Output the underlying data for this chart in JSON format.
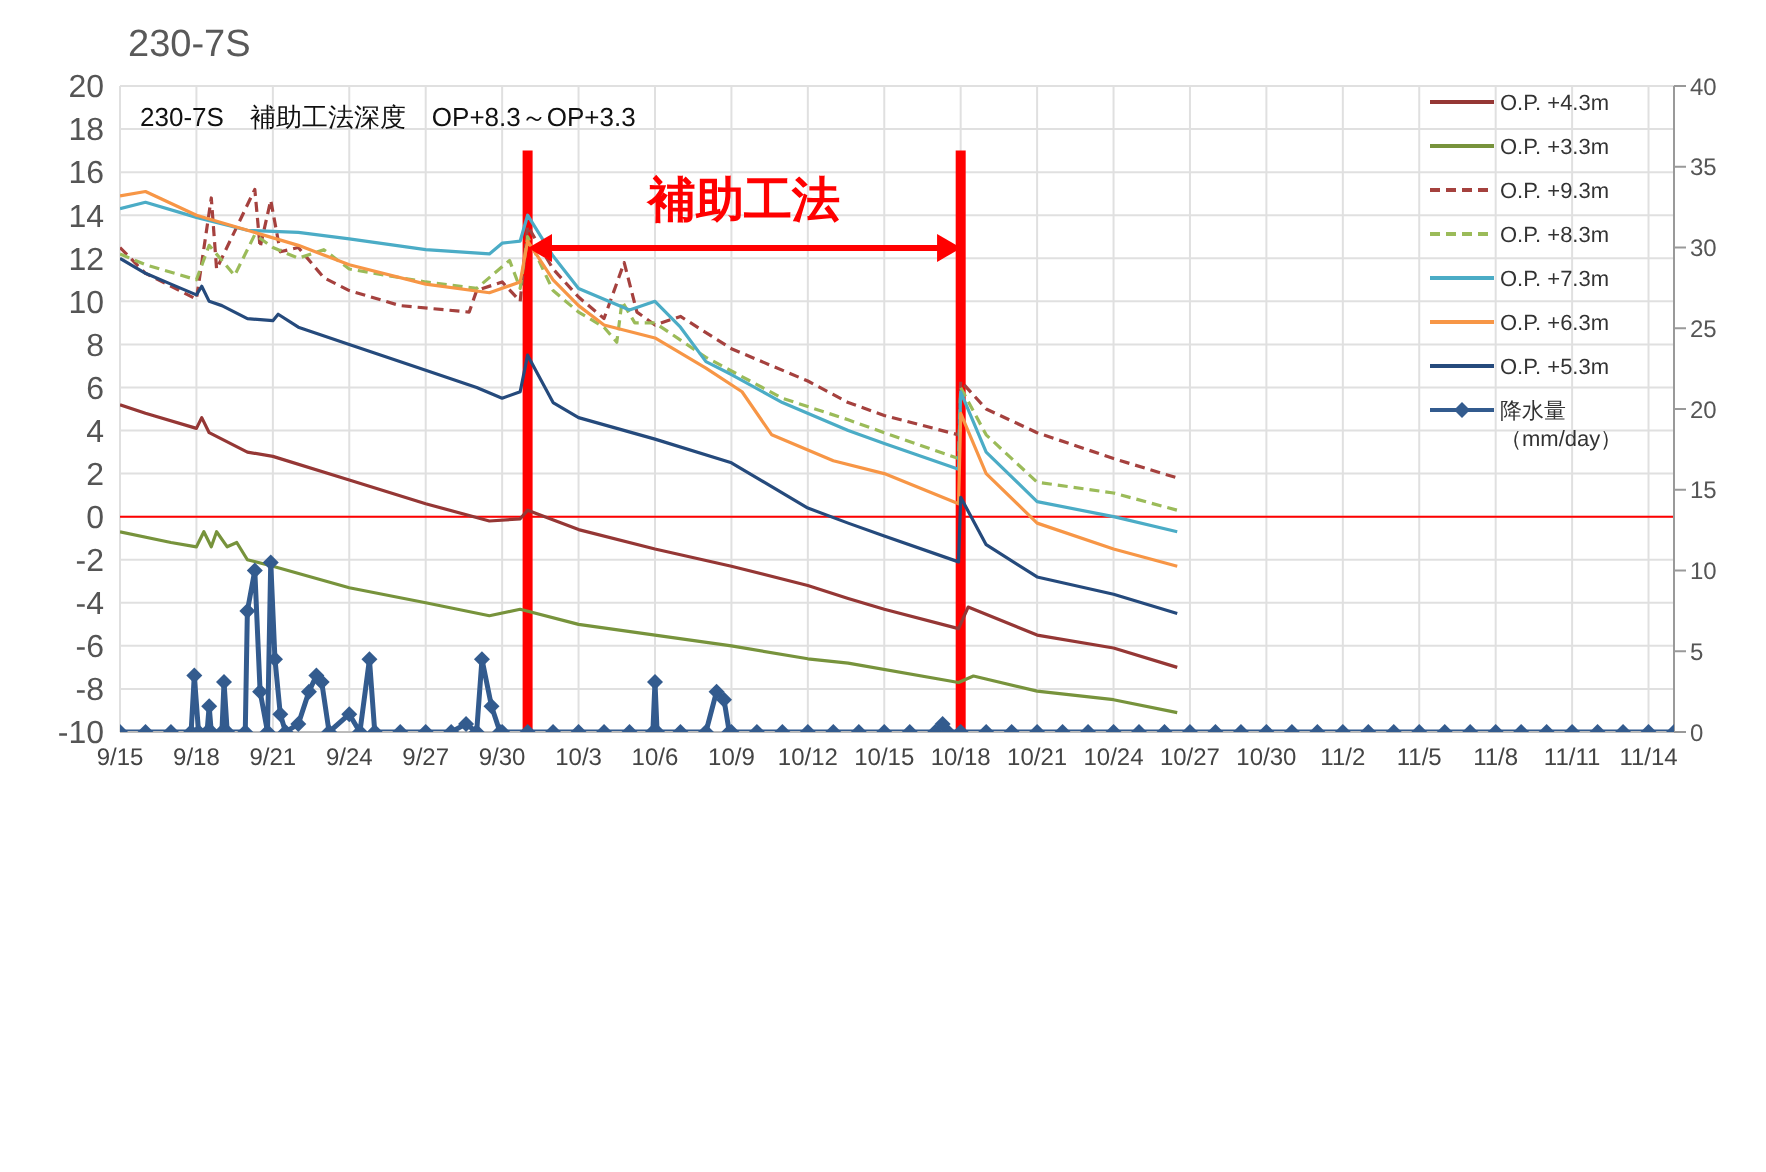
{
  "chart_data": {
    "type": "line",
    "title": "230-7S",
    "subtitle": "230-7S　補助工法深度　OP+8.3～OP+3.3",
    "annotations": [
      "補助工法"
    ],
    "xlim": [
      "--09-15",
      "--11-15"
    ],
    "xticks": [
      {
        "value": "--09-15",
        "label": "9/15"
      },
      {
        "value": "--09-18",
        "label": "9/18"
      },
      {
        "value": "--09-21",
        "label": "9/21"
      },
      {
        "value": "--09-24",
        "label": "9/24"
      },
      {
        "value": "--09-27",
        "label": "9/27"
      },
      {
        "value": "--09-30",
        "label": "9/30"
      },
      {
        "value": "--10-03",
        "label": "10/3"
      },
      {
        "value": "--10-06",
        "label": "10/6"
      },
      {
        "value": "--10-09",
        "label": "10/9"
      },
      {
        "value": "--10-12",
        "label": "10/12"
      },
      {
        "value": "--10-15",
        "label": "10/15"
      },
      {
        "value": "--10-18",
        "label": "10/18"
      },
      {
        "value": "--10-21",
        "label": "10/21"
      },
      {
        "value": "--10-24",
        "label": "10/24"
      },
      {
        "value": "--10-27",
        "label": "10/27"
      },
      {
        "value": "--10-30",
        "label": "10/30"
      },
      {
        "value": "--11-02",
        "label": "11/2"
      },
      {
        "value": "--11-05",
        "label": "11/5"
      },
      {
        "value": "--11-08",
        "label": "11/8"
      },
      {
        "value": "--11-11",
        "label": "11/11"
      },
      {
        "value": "--11-14",
        "label": "11/14"
      }
    ],
    "ylim": [
      -10,
      20
    ],
    "yticks": [
      -10,
      -8,
      -6,
      -4,
      -2,
      0,
      2,
      4,
      6,
      8,
      10,
      12,
      14,
      16,
      18,
      20
    ],
    "y2lim": [
      0,
      40
    ],
    "y2ticks": [
      0,
      5,
      10,
      15,
      20,
      25,
      30,
      35,
      40
    ],
    "grid": true,
    "legend": "right",
    "ref_lines": [
      {
        "axis": "x",
        "value": "--10-01",
        "color": "#ff0000"
      },
      {
        "axis": "x",
        "value": "--10-18",
        "color": "#ff0000"
      },
      {
        "axis": "y",
        "value": 0,
        "color": "#ff0000"
      }
    ],
    "series": [
      {
        "name": "O.P. +4.3m",
        "color": "#953735",
        "line_style": "solid",
        "marker": "none",
        "x": [
          "--09-15",
          "--09-16",
          "--09-18",
          "--09-18T05:00",
          "--09-18T12:00",
          "--09-20",
          "--09-21",
          "--09-24",
          "--09-27",
          "--09-29T12:00",
          "--09-30T17:00",
          "--10-01",
          "--10-03",
          "--10-06",
          "--10-09",
          "--10-12",
          "--10-13T14:00",
          "--10-15",
          "--10-17T22:00",
          "--10-18T07:00",
          "--10-21",
          "--10-24",
          "--10-26T12:00"
        ],
        "values": [
          5.2,
          4.8,
          4.1,
          4.6,
          3.9,
          3.0,
          2.8,
          1.7,
          0.6,
          -0.2,
          -0.1,
          0.3,
          -0.6,
          -1.5,
          -2.3,
          -3.2,
          -3.8,
          -4.3,
          -5.2,
          -4.2,
          -5.5,
          -6.1,
          -7.0
        ]
      },
      {
        "name": "O.P. +3.3m",
        "color": "#77933c",
        "line_style": "solid",
        "marker": "none",
        "x": [
          "--09-15",
          "--09-17",
          "--09-18",
          "--09-18T07:00",
          "--09-18T14:00",
          "--09-18T19:00",
          "--09-19T05:00",
          "--09-19T14:00",
          "--09-20",
          "--09-21",
          "--09-24",
          "--09-27",
          "--09-29T12:00",
          "--09-30T17:00",
          "--10-03",
          "--10-06",
          "--10-09",
          "--10-12",
          "--10-13T14:00",
          "--10-17T22:00",
          "--10-18T12:00",
          "--10-21",
          "--10-24",
          "--10-26T12:00"
        ],
        "values": [
          -0.7,
          -1.2,
          -1.4,
          -0.7,
          -1.4,
          -0.7,
          -1.4,
          -1.2,
          -2.0,
          -2.3,
          -3.3,
          -4.0,
          -4.6,
          -4.3,
          -5.0,
          -5.5,
          -6.0,
          -6.6,
          -6.8,
          -7.7,
          -7.4,
          -8.1,
          -8.5,
          -9.1
        ]
      },
      {
        "name": "O.P. +9.3m",
        "color": "#a5413e",
        "line_style": "dashed",
        "marker": "none",
        "x": [
          "--09-15",
          "--09-16",
          "--09-18",
          "--09-18T14:00",
          "--09-18T19:00",
          "--09-20T07:00",
          "--09-20T12:00",
          "--09-20T22:00",
          "--09-21T07:00",
          "--09-22",
          "--09-23",
          "--09-24",
          "--09-26",
          "--09-28T17:00",
          "--09-29",
          "--09-30",
          "--09-30T17:00",
          "--10-01",
          "--10-02",
          "--10-03",
          "--10-04",
          "--10-04T19:00",
          "--10-05T07:00",
          "--10-06",
          "--10-07",
          "--10-09",
          "--10-12",
          "--10-13T14:00",
          "--10-15",
          "--10-17T22:00",
          "--10-18",
          "--10-19",
          "--10-21",
          "--10-24",
          "--10-26T12:00"
        ],
        "values": [
          12.5,
          11.3,
          10.1,
          14.8,
          11.5,
          15.2,
          12.5,
          14.7,
          12.3,
          12.5,
          11.1,
          10.5,
          9.8,
          9.5,
          10.5,
          10.9,
          10.0,
          13.5,
          11.5,
          10.2,
          9.2,
          11.8,
          9.5,
          8.9,
          9.3,
          7.8,
          6.3,
          5.3,
          4.7,
          3.8,
          6.3,
          5.0,
          3.9,
          2.7,
          1.8
        ]
      },
      {
        "name": "O.P. +8.3m",
        "color": "#9bbb59",
        "line_style": "dashed",
        "marker": "none",
        "x": [
          "--09-15",
          "--09-16",
          "--09-18",
          "--09-18T12:00",
          "--09-19T12:00",
          "--09-20T07:00",
          "--09-21",
          "--09-22",
          "--09-23",
          "--09-24",
          "--09-27",
          "--09-29",
          "--09-30T07:00",
          "--09-30T17:00",
          "--10-01",
          "--10-02",
          "--10-03",
          "--10-04",
          "--10-04T12:00",
          "--10-04T17:00",
          "--10-05T05:00",
          "--10-06",
          "--10-08",
          "--10-11",
          "--10-13T14:00",
          "--10-15",
          "--10-17T22:00",
          "--10-18",
          "--10-19",
          "--10-21",
          "--10-24",
          "--10-26T12:00"
        ],
        "values": [
          12.2,
          11.7,
          11.0,
          12.6,
          11.2,
          13.1,
          12.5,
          12.0,
          12.4,
          11.5,
          10.9,
          10.6,
          11.9,
          10.6,
          13.0,
          10.5,
          9.5,
          8.8,
          8.1,
          10.0,
          9.0,
          9.0,
          7.4,
          5.5,
          4.5,
          3.9,
          2.7,
          6.0,
          3.8,
          1.6,
          1.1,
          0.3
        ]
      },
      {
        "name": "O.P. +7.3m",
        "color": "#4bacc6",
        "line_style": "solid",
        "marker": "none",
        "x": [
          "--09-15",
          "--09-16",
          "--09-18",
          "--09-20",
          "--09-22",
          "--09-24",
          "--09-27",
          "--09-29T12:00",
          "--09-30",
          "--09-30T17:00",
          "--10-01",
          "--10-02",
          "--10-03",
          "--10-04",
          "--10-05",
          "--10-06",
          "--10-07",
          "--10-08",
          "--10-09",
          "--10-11",
          "--10-13T14:00",
          "--10-15",
          "--10-17T22:00",
          "--10-18",
          "--10-19",
          "--10-21",
          "--10-24",
          "--10-26T12:00"
        ],
        "values": [
          14.3,
          14.6,
          13.9,
          13.3,
          13.2,
          12.9,
          12.4,
          12.2,
          12.7,
          12.8,
          14.0,
          12.1,
          10.6,
          10.1,
          9.6,
          10.0,
          8.8,
          7.2,
          6.6,
          5.3,
          4.0,
          3.4,
          2.2,
          5.8,
          3.0,
          0.7,
          0.0,
          -0.7
        ]
      },
      {
        "name": "O.P. +6.3m",
        "color": "#f79646",
        "line_style": "solid",
        "marker": "none",
        "x": [
          "--09-15",
          "--09-16",
          "--09-18",
          "--09-20",
          "--09-22",
          "--09-24",
          "--09-27",
          "--09-29T12:00",
          "--09-30T17:00",
          "--10-01",
          "--10-02",
          "--10-03",
          "--10-04",
          "--10-06",
          "--10-08",
          "--10-09T10:00",
          "--10-10T14:00",
          "--10-13",
          "--10-15",
          "--10-17T22:00",
          "--10-18",
          "--10-19",
          "--10-21",
          "--10-24",
          "--10-26T12:00"
        ],
        "values": [
          14.9,
          15.1,
          14.0,
          13.3,
          12.6,
          11.7,
          10.8,
          10.4,
          10.9,
          12.8,
          11.0,
          9.8,
          8.9,
          8.3,
          6.9,
          5.8,
          3.8,
          2.6,
          2.0,
          0.6,
          4.8,
          2.0,
          -0.3,
          -1.5,
          -2.3
        ]
      },
      {
        "name": "O.P. +5.3m",
        "color": "#254a7c",
        "line_style": "solid",
        "marker": "none",
        "x": [
          "--09-15",
          "--09-16",
          "--09-17",
          "--09-18",
          "--09-18T05:00",
          "--09-18T12:00",
          "--09-19",
          "--09-20",
          "--09-21",
          "--09-21T05:00",
          "--09-22",
          "--09-24",
          "--09-27",
          "--09-29",
          "--09-30",
          "--09-30T17:00",
          "--10-01",
          "--10-02",
          "--10-03",
          "--10-06",
          "--10-09",
          "--10-12",
          "--10-13T14:00",
          "--10-15",
          "--10-17T22:00",
          "--10-18",
          "--10-19",
          "--10-21",
          "--10-24",
          "--10-26T12:00"
        ],
        "values": [
          12.0,
          11.3,
          10.8,
          10.3,
          10.7,
          10.0,
          9.8,
          9.2,
          9.1,
          9.4,
          8.8,
          8.0,
          6.8,
          6.0,
          5.5,
          5.8,
          7.5,
          5.3,
          4.6,
          3.6,
          2.5,
          0.4,
          -0.3,
          -0.9,
          -2.1,
          0.9,
          -1.3,
          -2.8,
          -3.6,
          -4.5
        ]
      },
      {
        "name": "降水量（mm/day）",
        "color": "#335b8e",
        "axis": "y2",
        "line_style": "solid",
        "marker": "diamond",
        "x": [
          "--09-15",
          "--09-16",
          "--09-17",
          "--09-17T19:00",
          "--09-17T22:00",
          "--09-18T02:00",
          "--09-18T10:00",
          "--09-18T12:00",
          "--09-18T14:00",
          "--09-19",
          "--09-19T02:00",
          "--09-19T05:00",
          "--09-19T22:00",
          "--09-20",
          "--09-20T07:00",
          "--09-20T12:00",
          "--09-20T19:00",
          "--09-20T22:00",
          "--09-21T02:00",
          "--09-21T07:00",
          "--09-21T12:00",
          "--09-22",
          "--09-22T10:00",
          "--09-22T17:00",
          "--09-22T22:00",
          "--09-23T05:00",
          "--09-24",
          "--09-24T10:00",
          "--09-24T19:00",
          "--09-25",
          "--09-26",
          "--09-27",
          "--09-28",
          "--09-28T14:00",
          "--09-29",
          "--09-29T05:00",
          "--09-29T14:00",
          "--09-29T22:00",
          "--09-30",
          "--10-01",
          "--10-02",
          "--10-03",
          "--10-04",
          "--10-05",
          "--10-05T22:00",
          "--10-06",
          "--10-06T02:00",
          "--10-07",
          "--10-08",
          "--10-08T10:00",
          "--10-08T17:00",
          "--10-08T22:00",
          "--10-09",
          "--10-10",
          "--10-11",
          "--10-12",
          "--10-13",
          "--10-14",
          "--10-15",
          "--10-16",
          "--10-17",
          "--10-17T07:00",
          "--10-17T12:00",
          "--10-18",
          "--10-19",
          "--10-20",
          "--10-21",
          "--10-22",
          "--10-23",
          "--10-24",
          "--10-25",
          "--10-26",
          "--10-27",
          "--10-28",
          "--10-29",
          "--10-30",
          "--10-31",
          "--11-01",
          "--11-02",
          "--11-03",
          "--11-04",
          "--11-05",
          "--11-06",
          "--11-07",
          "--11-08",
          "--11-09",
          "--11-10",
          "--11-11",
          "--11-12",
          "--11-13",
          "--11-14",
          "--11-15"
        ],
        "values": [
          0,
          0,
          0,
          0,
          3.5,
          0,
          0,
          1.6,
          0,
          0,
          3.1,
          0,
          0,
          7.5,
          10.0,
          2.5,
          0,
          10.5,
          4.5,
          1.1,
          0,
          0.5,
          2.5,
          3.5,
          3.1,
          0,
          1.1,
          0,
          4.5,
          0,
          0,
          0,
          0,
          0.5,
          0,
          4.5,
          1.6,
          0,
          0,
          0,
          0,
          0,
          0,
          0,
          0,
          3.1,
          0,
          0,
          0,
          2.5,
          2.0,
          0,
          0,
          0,
          0,
          0,
          0,
          0,
          0,
          0,
          0,
          0.5,
          0,
          0,
          0,
          0,
          0,
          0,
          0,
          0,
          0,
          0,
          0,
          0,
          0,
          0,
          0,
          0,
          0,
          0,
          0,
          0,
          0,
          0,
          0,
          0,
          0,
          0,
          0,
          0,
          0,
          0
        ]
      }
    ]
  }
}
